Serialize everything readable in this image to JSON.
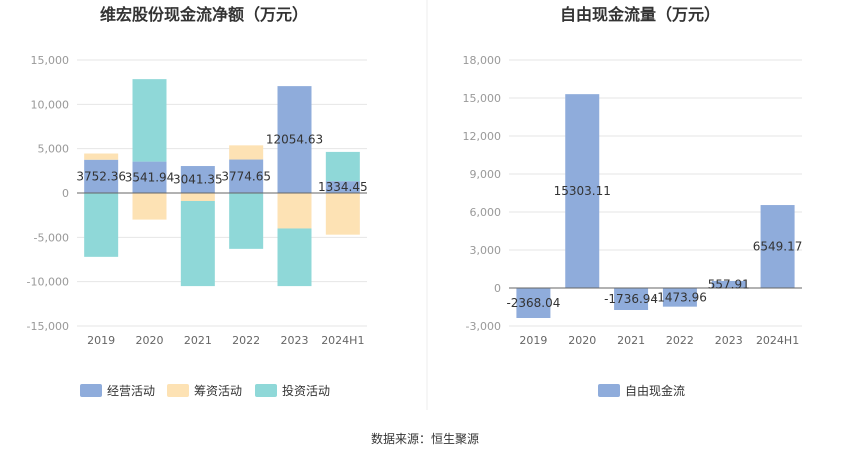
{
  "source": "数据来源：恒生聚源",
  "colors": {
    "operating": "#8facdb",
    "financing": "#fde2b4",
    "investing": "#8fd8d8",
    "fcf": "#8facdb",
    "grid": "#e6e6e6",
    "axis": "#666666"
  },
  "chart_data": [
    {
      "type": "bar",
      "stacked": true,
      "title": "维宏股份现金流净额（万元）",
      "categories": [
        "2019",
        "2020",
        "2021",
        "2022",
        "2023",
        "2024H1"
      ],
      "ylim": [
        -15000,
        15000
      ],
      "yticks": [
        15000,
        10000,
        5000,
        0,
        -5000,
        -10000,
        -15000
      ],
      "ytick_labels": [
        "15,000",
        "10,000",
        "5,000",
        "0",
        "-5,000",
        "-10,000",
        "-15,000"
      ],
      "grid": true,
      "legend_position": "bottom-left",
      "series": [
        {
          "name": "经营活动",
          "values": [
            3752.36,
            3541.94,
            3041.35,
            3774.65,
            12054.63,
            1334.45
          ],
          "labels": [
            "3752.36",
            "3541.94",
            "3041.35",
            "3774.65",
            "12054.63",
            "1334.45"
          ]
        },
        {
          "name": "筹资活动",
          "values": [
            700,
            -3000,
            -900,
            1600,
            -4000,
            -4700
          ]
        },
        {
          "name": "投资活动",
          "values": [
            -7200,
            9300,
            -9600,
            -6300,
            -6500,
            3300
          ]
        }
      ]
    },
    {
      "type": "bar",
      "title": "自由现金流量（万元）",
      "categories": [
        "2019",
        "2020",
        "2021",
        "2022",
        "2023",
        "2024H1"
      ],
      "ylim": [
        -3000,
        18000
      ],
      "yticks": [
        18000,
        15000,
        12000,
        9000,
        6000,
        3000,
        0,
        -3000
      ],
      "ytick_labels": [
        "18,000",
        "15,000",
        "12,000",
        "9,000",
        "6,000",
        "3,000",
        "0",
        "-3,000"
      ],
      "grid": true,
      "legend_position": "bottom-center",
      "series": [
        {
          "name": "自由现金流",
          "values": [
            -2368.04,
            15303.11,
            -1736.94,
            -1473.96,
            557.91,
            6549.17
          ],
          "labels": [
            "-2368.04",
            "15303.11",
            "-1736.94",
            "-1473.96",
            "557.91",
            "6549.17"
          ]
        }
      ]
    }
  ]
}
